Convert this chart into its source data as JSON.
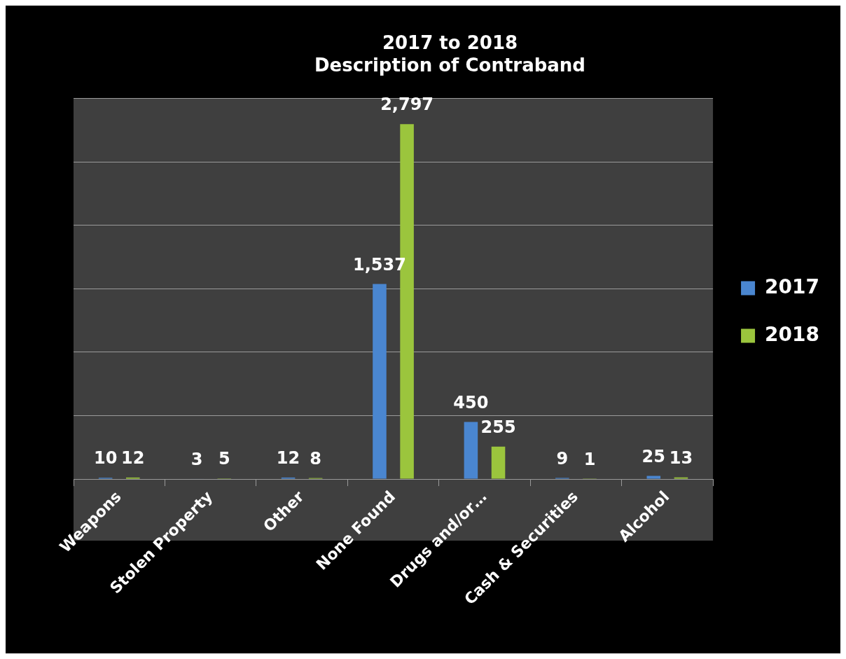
{
  "chart_data": {
    "type": "bar",
    "title": "2017 to 2018\nDescription of Contraband",
    "categories": [
      "Weapons",
      "Stolen Property",
      "Other",
      "None Found",
      "Drugs and/or…",
      "Cash & Securities",
      "Alcohol"
    ],
    "series": [
      {
        "name": "2017",
        "color": "#4a86d0",
        "values": [
          10,
          3,
          12,
          1537,
          450,
          9,
          25
        ],
        "value_labels": [
          "10",
          "3",
          "12",
          "1,537",
          "450",
          "9",
          "25"
        ]
      },
      {
        "name": "2018",
        "color": "#9bc53d",
        "values": [
          12,
          5,
          8,
          2797,
          255,
          1,
          13
        ],
        "value_labels": [
          "12",
          "5",
          "8",
          "2,797",
          "255",
          "1",
          "13"
        ]
      }
    ],
    "ylim": [
      0,
      3000
    ],
    "yticks": [
      {
        "value": 0,
        "label": null
      },
      {
        "value": 500,
        "label": null
      },
      {
        "value": 1000,
        "label": null
      },
      {
        "value": 1500,
        "label": null
      },
      {
        "value": 2000,
        "label": null
      },
      {
        "value": 2500,
        "label": null
      },
      {
        "value": 3000,
        "label": null
      }
    ],
    "tick_labels": "x",
    "grid": "y",
    "legend": "right"
  }
}
